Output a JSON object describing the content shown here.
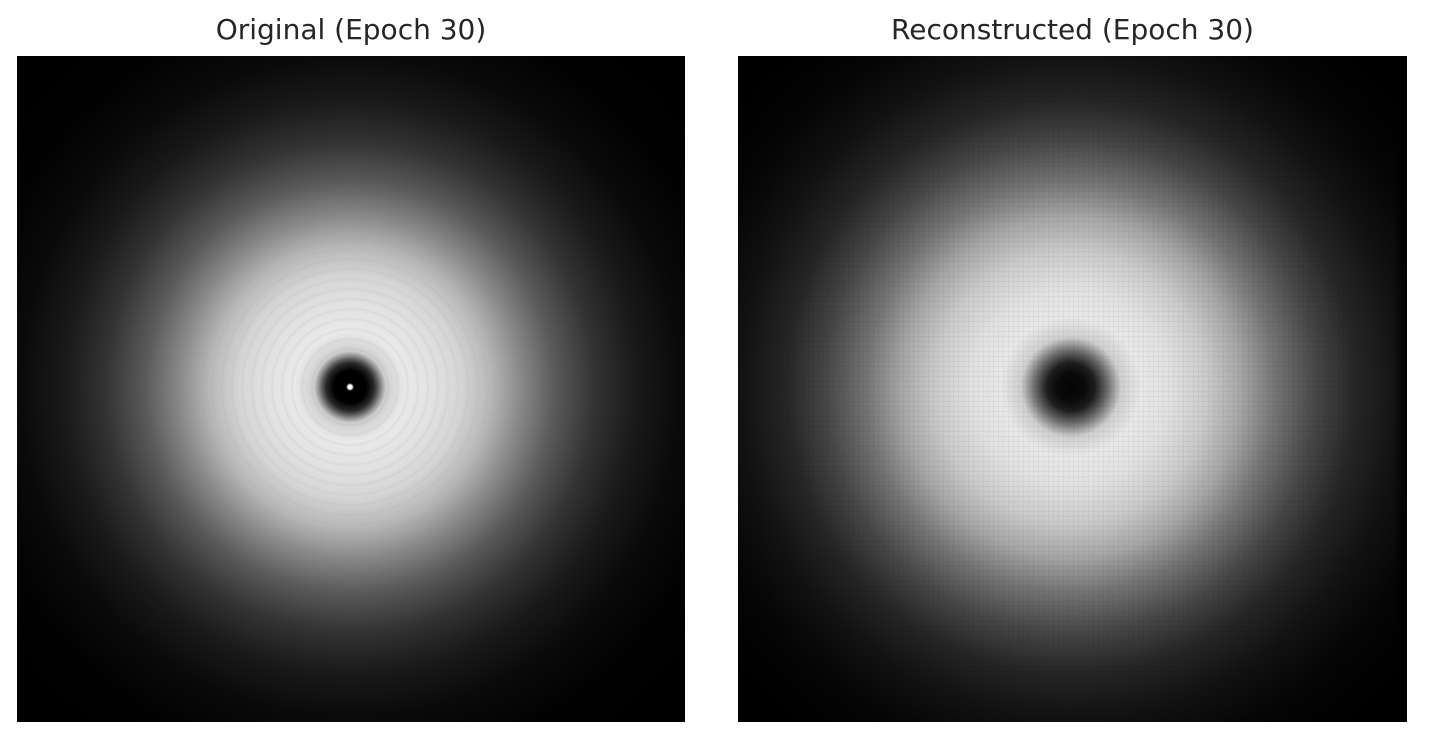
{
  "panels": [
    {
      "title": "Original (Epoch 30)"
    },
    {
      "title": "Reconstructed (Epoch 30)"
    }
  ],
  "colors": {
    "background": "#ffffff",
    "title_text": "#262626",
    "image_dark": "#000000",
    "image_bright": "#ffffff"
  }
}
